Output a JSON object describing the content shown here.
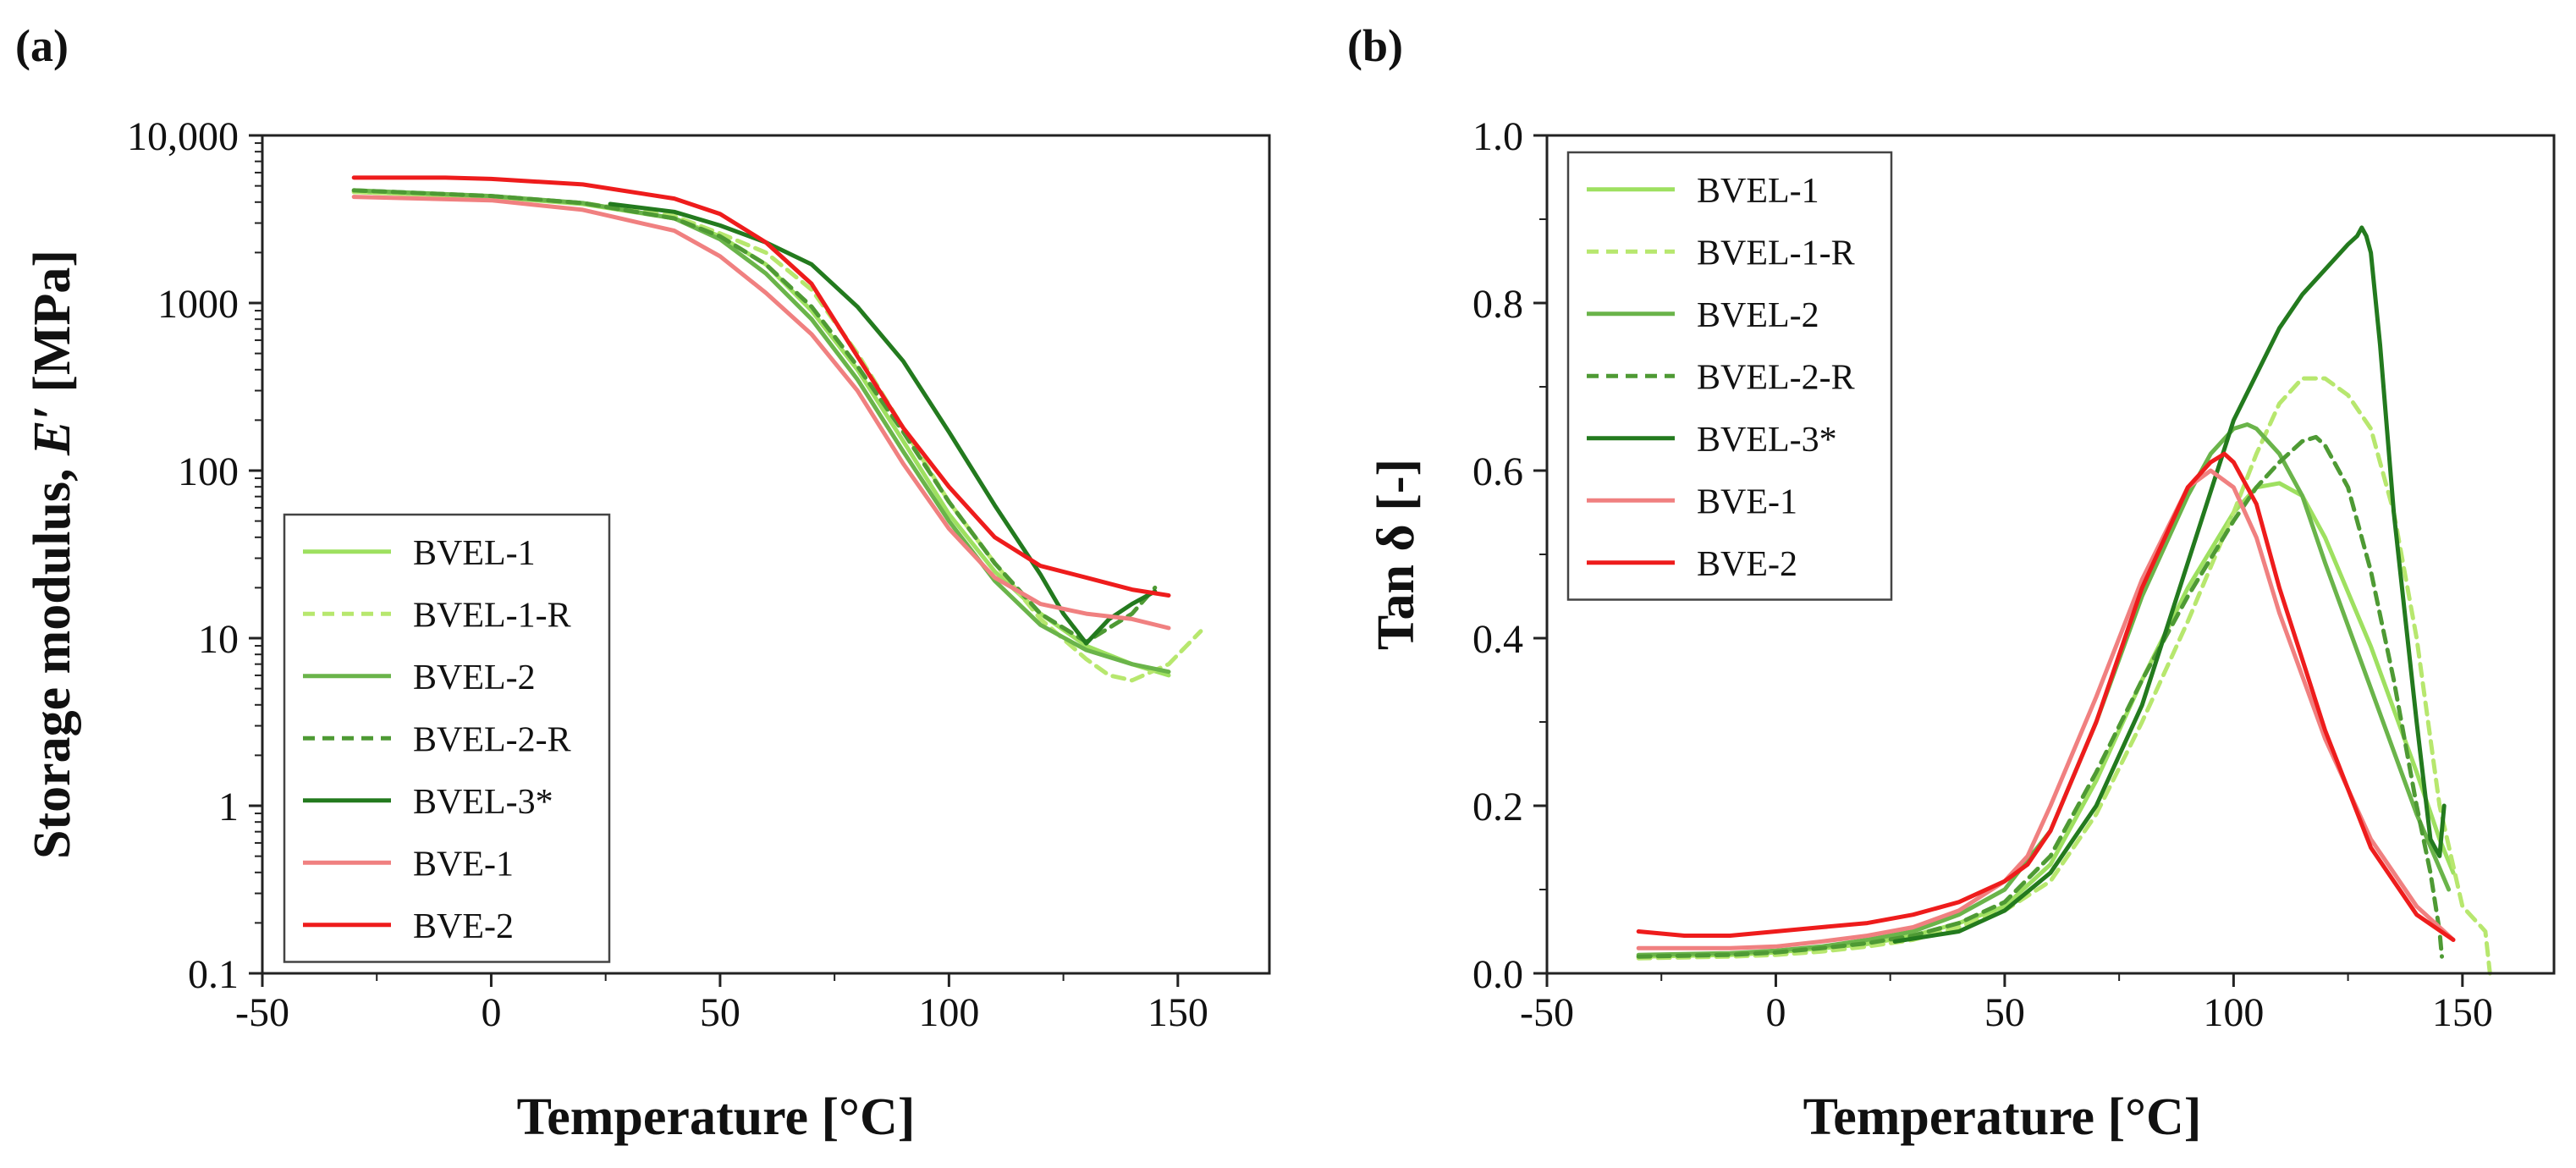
{
  "chart_data": [
    {
      "panel": "(a)",
      "type": "line",
      "xlabel": "Temperature [°C]",
      "ylabel_prefix": "Storage modulus, ",
      "ylabel_symbol": "E′",
      "ylabel_suffix": " [MPa]",
      "yscale": "log",
      "xlim": [
        -50,
        170
      ],
      "ylim": [
        0.1,
        10000
      ],
      "xticks": [
        -50,
        0,
        50,
        100,
        150
      ],
      "xtick_labels": [
        "-50",
        "0",
        "50",
        "100",
        "150"
      ],
      "yticks": [
        0.1,
        1,
        10,
        100,
        1000,
        10000
      ],
      "ytick_labels": [
        "0.1",
        "1",
        "10",
        "100",
        "1000",
        "10,000"
      ],
      "legend_position": "bottom-left",
      "series": [
        {
          "name": "BVEL-1",
          "color": "#9ee060",
          "dash": "solid",
          "x": [
            -30,
            0,
            20,
            40,
            50,
            60,
            70,
            80,
            90,
            100,
            110,
            120,
            130,
            140,
            148
          ],
          "y": [
            4600,
            4300,
            3900,
            3200,
            2500,
            1700,
            900,
            400,
            150,
            55,
            25,
            14,
            9,
            7,
            6
          ]
        },
        {
          "name": "BVEL-1-R",
          "color": "#b7e76e",
          "dash": "dashed",
          "x": [
            -30,
            0,
            20,
            40,
            50,
            60,
            70,
            80,
            90,
            100,
            110,
            120,
            130,
            135,
            140,
            148,
            155
          ],
          "y": [
            4600,
            4300,
            3950,
            3300,
            2600,
            2000,
            1200,
            500,
            180,
            65,
            28,
            13,
            7.5,
            6,
            5.6,
            7,
            11
          ]
        },
        {
          "name": "BVEL-2",
          "color": "#6ab44a",
          "dash": "solid",
          "x": [
            -30,
            0,
            20,
            40,
            50,
            60,
            70,
            80,
            90,
            100,
            110,
            120,
            130,
            140,
            148
          ],
          "y": [
            4700,
            4350,
            3950,
            3200,
            2400,
            1500,
            800,
            350,
            130,
            50,
            22,
            12,
            8.5,
            7,
            6.3
          ]
        },
        {
          "name": "BVEL-2-R",
          "color": "#4e9a34",
          "dash": "dashed",
          "x": [
            -30,
            0,
            20,
            40,
            50,
            60,
            70,
            80,
            90,
            100,
            110,
            120,
            130,
            140,
            145
          ],
          "y": [
            4700,
            4350,
            3950,
            3200,
            2500,
            1700,
            950,
            420,
            170,
            65,
            28,
            14,
            9.5,
            14,
            20
          ]
        },
        {
          "name": "BVEL-3*",
          "color": "#237a1e",
          "dash": "solid",
          "x": [
            26,
            40,
            50,
            60,
            70,
            80,
            90,
            100,
            110,
            120,
            125,
            130,
            135,
            140,
            145
          ],
          "y": [
            3900,
            3500,
            2900,
            2300,
            1700,
            950,
            450,
            170,
            62,
            24,
            14,
            9.3,
            13,
            16,
            19
          ]
        },
        {
          "name": "BVE-1",
          "color": "#f08080",
          "dash": "solid",
          "x": [
            -30,
            0,
            20,
            40,
            50,
            60,
            70,
            80,
            90,
            100,
            110,
            120,
            130,
            140,
            148
          ],
          "y": [
            4300,
            4100,
            3600,
            2700,
            1900,
            1150,
            650,
            300,
            110,
            45,
            23,
            16,
            14,
            13,
            11.5
          ]
        },
        {
          "name": "BVE-2",
          "color": "#ee1c1c",
          "dash": "solid",
          "x": [
            -30,
            -10,
            0,
            20,
            40,
            50,
            60,
            70,
            80,
            90,
            100,
            110,
            120,
            130,
            140,
            148
          ],
          "y": [
            5600,
            5600,
            5500,
            5100,
            4200,
            3400,
            2300,
            1300,
            480,
            180,
            80,
            40,
            27,
            23,
            19.5,
            18
          ]
        }
      ]
    },
    {
      "panel": "(b)",
      "type": "line",
      "xlabel": "Temperature [°C]",
      "ylabel": "Tan δ [-]",
      "yscale": "linear",
      "xlim": [
        -50,
        170
      ],
      "ylim": [
        0,
        1.0
      ],
      "xticks": [
        -50,
        0,
        50,
        100,
        150
      ],
      "xtick_labels": [
        "-50",
        "0",
        "50",
        "100",
        "150"
      ],
      "yticks": [
        0,
        0.2,
        0.4,
        0.6,
        0.8,
        1.0
      ],
      "ytick_labels": [
        "0.0",
        "0.2",
        "0.4",
        "0.6",
        "0.8",
        "1.0"
      ],
      "legend_position": "top-left",
      "series": [
        {
          "name": "BVEL-1",
          "color": "#9ee060",
          "dash": "solid",
          "x": [
            -30,
            -10,
            0,
            10,
            20,
            30,
            40,
            50,
            60,
            70,
            80,
            90,
            100,
            105,
            110,
            115,
            120,
            130,
            140,
            145,
            148
          ],
          "y": [
            0.02,
            0.022,
            0.025,
            0.03,
            0.035,
            0.045,
            0.06,
            0.08,
            0.13,
            0.23,
            0.35,
            0.46,
            0.55,
            0.58,
            0.585,
            0.57,
            0.52,
            0.39,
            0.24,
            0.16,
            0.12
          ]
        },
        {
          "name": "BVEL-1-R",
          "color": "#b7e76e",
          "dash": "dashed",
          "x": [
            -30,
            -10,
            0,
            10,
            20,
            30,
            40,
            50,
            60,
            70,
            80,
            90,
            100,
            105,
            110,
            115,
            120,
            125,
            130,
            135,
            140,
            145,
            150,
            155,
            156
          ],
          "y": [
            0.018,
            0.02,
            0.022,
            0.026,
            0.032,
            0.04,
            0.055,
            0.075,
            0.11,
            0.19,
            0.3,
            0.42,
            0.55,
            0.62,
            0.68,
            0.71,
            0.71,
            0.69,
            0.65,
            0.55,
            0.4,
            0.2,
            0.08,
            0.05,
            0.0
          ]
        },
        {
          "name": "BVEL-2",
          "color": "#6ab44a",
          "dash": "solid",
          "x": [
            -30,
            -10,
            0,
            10,
            20,
            30,
            40,
            50,
            60,
            70,
            80,
            90,
            95,
            100,
            103,
            105,
            110,
            115,
            120,
            130,
            140,
            147
          ],
          "y": [
            0.022,
            0.024,
            0.027,
            0.032,
            0.04,
            0.05,
            0.07,
            0.1,
            0.17,
            0.3,
            0.45,
            0.57,
            0.62,
            0.65,
            0.655,
            0.65,
            0.62,
            0.57,
            0.49,
            0.34,
            0.19,
            0.1
          ]
        },
        {
          "name": "BVEL-2-R",
          "color": "#4e9a34",
          "dash": "dashed",
          "x": [
            -30,
            -10,
            0,
            10,
            20,
            30,
            40,
            50,
            60,
            70,
            80,
            90,
            100,
            105,
            110,
            115,
            118,
            120,
            125,
            130,
            135,
            140,
            143,
            145,
            145.5
          ],
          "y": [
            0.02,
            0.022,
            0.025,
            0.03,
            0.036,
            0.045,
            0.06,
            0.085,
            0.14,
            0.24,
            0.35,
            0.45,
            0.54,
            0.58,
            0.61,
            0.635,
            0.64,
            0.63,
            0.58,
            0.48,
            0.35,
            0.2,
            0.12,
            0.05,
            0.02
          ]
        },
        {
          "name": "BVEL-3*",
          "color": "#237a1e",
          "dash": "solid",
          "x": [
            26,
            40,
            50,
            60,
            70,
            80,
            90,
            100,
            110,
            115,
            120,
            125,
            127,
            128,
            129,
            130,
            132,
            135,
            140,
            143,
            145,
            145.5,
            146
          ],
          "y": [
            0.038,
            0.05,
            0.075,
            0.12,
            0.2,
            0.32,
            0.49,
            0.66,
            0.77,
            0.81,
            0.84,
            0.87,
            0.88,
            0.89,
            0.88,
            0.86,
            0.75,
            0.55,
            0.3,
            0.16,
            0.14,
            0.17,
            0.2
          ]
        },
        {
          "name": "BVE-1",
          "color": "#f08080",
          "dash": "solid",
          "x": [
            -30,
            -10,
            0,
            10,
            20,
            30,
            40,
            50,
            55,
            60,
            70,
            80,
            90,
            95,
            100,
            105,
            110,
            120,
            130,
            140,
            148
          ],
          "y": [
            0.03,
            0.03,
            0.032,
            0.038,
            0.045,
            0.055,
            0.075,
            0.11,
            0.14,
            0.2,
            0.33,
            0.47,
            0.58,
            0.6,
            0.58,
            0.52,
            0.43,
            0.28,
            0.16,
            0.08,
            0.04
          ]
        },
        {
          "name": "BVE-2",
          "color": "#ee1c1c",
          "dash": "solid",
          "x": [
            -30,
            -20,
            -10,
            0,
            10,
            20,
            30,
            40,
            50,
            55,
            60,
            70,
            80,
            90,
            95,
            98,
            100,
            105,
            110,
            120,
            130,
            140,
            148
          ],
          "y": [
            0.05,
            0.045,
            0.045,
            0.05,
            0.055,
            0.06,
            0.07,
            0.085,
            0.11,
            0.13,
            0.17,
            0.3,
            0.46,
            0.58,
            0.61,
            0.62,
            0.61,
            0.56,
            0.46,
            0.29,
            0.15,
            0.07,
            0.04
          ]
        }
      ]
    }
  ]
}
